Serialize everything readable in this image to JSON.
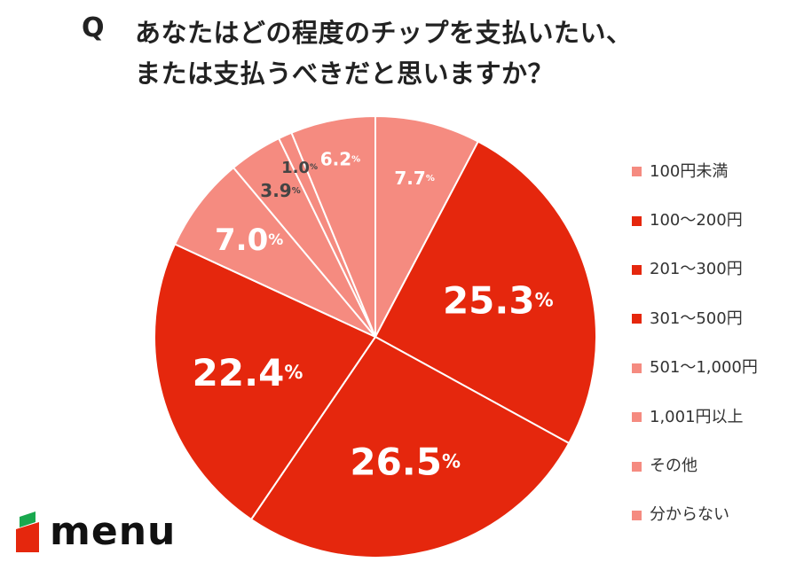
{
  "title": {
    "q_mark": "Q",
    "line1": "あなたはどの程度のチップを支払いたい、",
    "line2": "または支払うべきだと思いますか？"
  },
  "chart_data": {
    "type": "pie",
    "categories": [
      "100円未満",
      "100〜200円",
      "201〜300円",
      "301〜500円",
      "501〜1,000円",
      "1,001円以上",
      "その他",
      "分からない"
    ],
    "values": [
      7.7,
      25.3,
      26.5,
      22.4,
      7.0,
      3.9,
      1.0,
      6.2
    ],
    "labels": [
      "7.7",
      "25.3",
      "26.5",
      "22.4",
      "7.0",
      "3.9",
      "1.0",
      "6.2"
    ],
    "unit": "%",
    "slice_colors": [
      "#f58b80",
      "#e5270d",
      "#e5270d",
      "#e5270d",
      "#f58b80",
      "#f58b80",
      "#f58b80",
      "#f58b80"
    ],
    "legend_colors": [
      "#f58b80",
      "#e5270d",
      "#e5270d",
      "#e5270d",
      "#f58b80",
      "#f58b80",
      "#f58b80",
      "#f58b80"
    ],
    "label_colors": [
      "#ffffff",
      "#ffffff",
      "#ffffff",
      "#ffffff",
      "#ffffff",
      "#444444",
      "#444444",
      "#ffffff"
    ],
    "legend_position": "right"
  },
  "logo": {
    "text": "menu",
    "colors": {
      "green": "#19a84e",
      "red": "#e5270d"
    }
  }
}
